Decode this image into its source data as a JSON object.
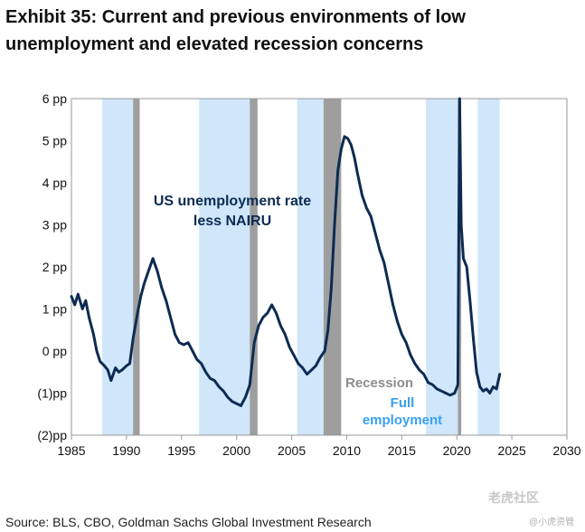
{
  "title_line1": "Exhibit 35: Current and previous environments of low",
  "title_line2": "unemployment and elevated recession concerns",
  "source": "Source: BLS, CBO, Goldman Sachs Global Investment Research",
  "watermark_main": "老虎社区",
  "watermark_sub": "@小虎资管",
  "colors": {
    "line": "#0d2b52",
    "recession": "#9e9e9e",
    "full_employment": "#cfe6fb",
    "recession_label": "#8c8c8c",
    "full_employment_label": "#39a0f2",
    "annotation": "#0d2b52"
  },
  "chart_data": {
    "type": "line",
    "title": "",
    "xlabel": "",
    "ylabel": "",
    "xlim": [
      1985,
      2030
    ],
    "ylim": [
      -2,
      6
    ],
    "x_ticks": [
      1985,
      1990,
      1995,
      2000,
      2005,
      2010,
      2015,
      2020,
      2025,
      2030
    ],
    "y_ticks": [
      {
        "value": 6,
        "label": "6 pp"
      },
      {
        "value": 5,
        "label": "5 pp"
      },
      {
        "value": 4,
        "label": "4 pp"
      },
      {
        "value": 3,
        "label": "3 pp"
      },
      {
        "value": 2,
        "label": "2 pp"
      },
      {
        "value": 1,
        "label": "1 pp"
      },
      {
        "value": 0,
        "label": "0 pp"
      },
      {
        "value": -1,
        "label": "(1)pp"
      },
      {
        "value": -2,
        "label": "(2)pp"
      }
    ],
    "grid": false,
    "annotation_line1": "US unemployment rate",
    "annotation_line2": "less NAIRU",
    "legend_recession": "Recession",
    "legend_full_line1": "Full",
    "legend_full_line2": "employment",
    "recession_periods": [
      [
        1990.6,
        1991.2
      ],
      [
        2001.2,
        2001.9
      ],
      [
        2007.9,
        2009.5
      ],
      [
        2020.1,
        2020.4
      ]
    ],
    "full_employment_periods": [
      [
        1987.8,
        1990.6
      ],
      [
        1996.6,
        2001.2
      ],
      [
        2005.5,
        2007.9
      ],
      [
        2017.2,
        2020.1
      ],
      [
        2021.9,
        2023.9
      ]
    ],
    "series": [
      {
        "x": [
          1985.0,
          1985.3,
          1985.6,
          1986.0,
          1986.3,
          1986.6,
          1987.0,
          1987.3,
          1987.6,
          1988.0,
          1988.3,
          1988.6,
          1989.0,
          1989.3,
          1989.6,
          1990.0,
          1990.3,
          1990.6,
          1991.0,
          1991.3,
          1991.6,
          1992.0,
          1992.4,
          1992.8,
          1993.2,
          1993.6,
          1994.0,
          1994.4,
          1994.8,
          1995.2,
          1995.6,
          1996.0,
          1996.4,
          1996.8,
          1997.2,
          1997.6,
          1998.0,
          1998.4,
          1998.8,
          1999.2,
          1999.6,
          2000.0,
          2000.4,
          2000.8,
          2001.2,
          2001.6,
          2002.0,
          2002.4,
          2002.8,
          2003.2,
          2003.6,
          2004.0,
          2004.4,
          2004.8,
          2005.2,
          2005.6,
          2006.0,
          2006.4,
          2006.8,
          2007.2,
          2007.6,
          2008.0,
          2008.3,
          2008.6,
          2008.9,
          2009.2,
          2009.5,
          2009.8,
          2010.1,
          2010.4,
          2010.7,
          2011.0,
          2011.4,
          2011.8,
          2012.2,
          2012.6,
          2013.0,
          2013.4,
          2013.8,
          2014.2,
          2014.6,
          2015.0,
          2015.4,
          2015.8,
          2016.2,
          2016.6,
          2017.0,
          2017.4,
          2017.8,
          2018.2,
          2018.6,
          2019.0,
          2019.4,
          2019.8,
          2020.1,
          2020.25,
          2020.4,
          2020.6,
          2020.9,
          2021.2,
          2021.5,
          2021.8,
          2022.1,
          2022.4,
          2022.7,
          2023.0,
          2023.3,
          2023.6,
          2023.9
        ],
        "y": [
          1.3,
          1.1,
          1.35,
          1.0,
          1.2,
          0.8,
          0.4,
          0.0,
          -0.25,
          -0.35,
          -0.45,
          -0.7,
          -0.4,
          -0.5,
          -0.45,
          -0.35,
          -0.3,
          0.3,
          0.9,
          1.3,
          1.6,
          1.9,
          2.2,
          1.9,
          1.5,
          1.2,
          0.8,
          0.4,
          0.2,
          0.15,
          0.2,
          0.0,
          -0.2,
          -0.3,
          -0.5,
          -0.65,
          -0.7,
          -0.85,
          -0.95,
          -1.1,
          -1.2,
          -1.25,
          -1.3,
          -1.1,
          -0.8,
          0.2,
          0.6,
          0.8,
          0.9,
          1.1,
          0.9,
          0.6,
          0.4,
          0.1,
          -0.1,
          -0.3,
          -0.4,
          -0.55,
          -0.45,
          -0.35,
          -0.15,
          0.0,
          0.5,
          1.5,
          3.0,
          4.3,
          4.8,
          5.1,
          5.05,
          4.9,
          4.6,
          4.2,
          3.7,
          3.4,
          3.2,
          2.8,
          2.4,
          2.1,
          1.6,
          1.1,
          0.7,
          0.4,
          0.2,
          -0.1,
          -0.3,
          -0.45,
          -0.55,
          -0.75,
          -0.8,
          -0.9,
          -0.95,
          -1.0,
          -1.05,
          -1.0,
          -0.8,
          6.1,
          3.0,
          2.2,
          2.0,
          1.2,
          0.3,
          -0.5,
          -0.85,
          -0.95,
          -0.9,
          -1.0,
          -0.85,
          -0.9,
          -0.55
        ]
      }
    ]
  }
}
